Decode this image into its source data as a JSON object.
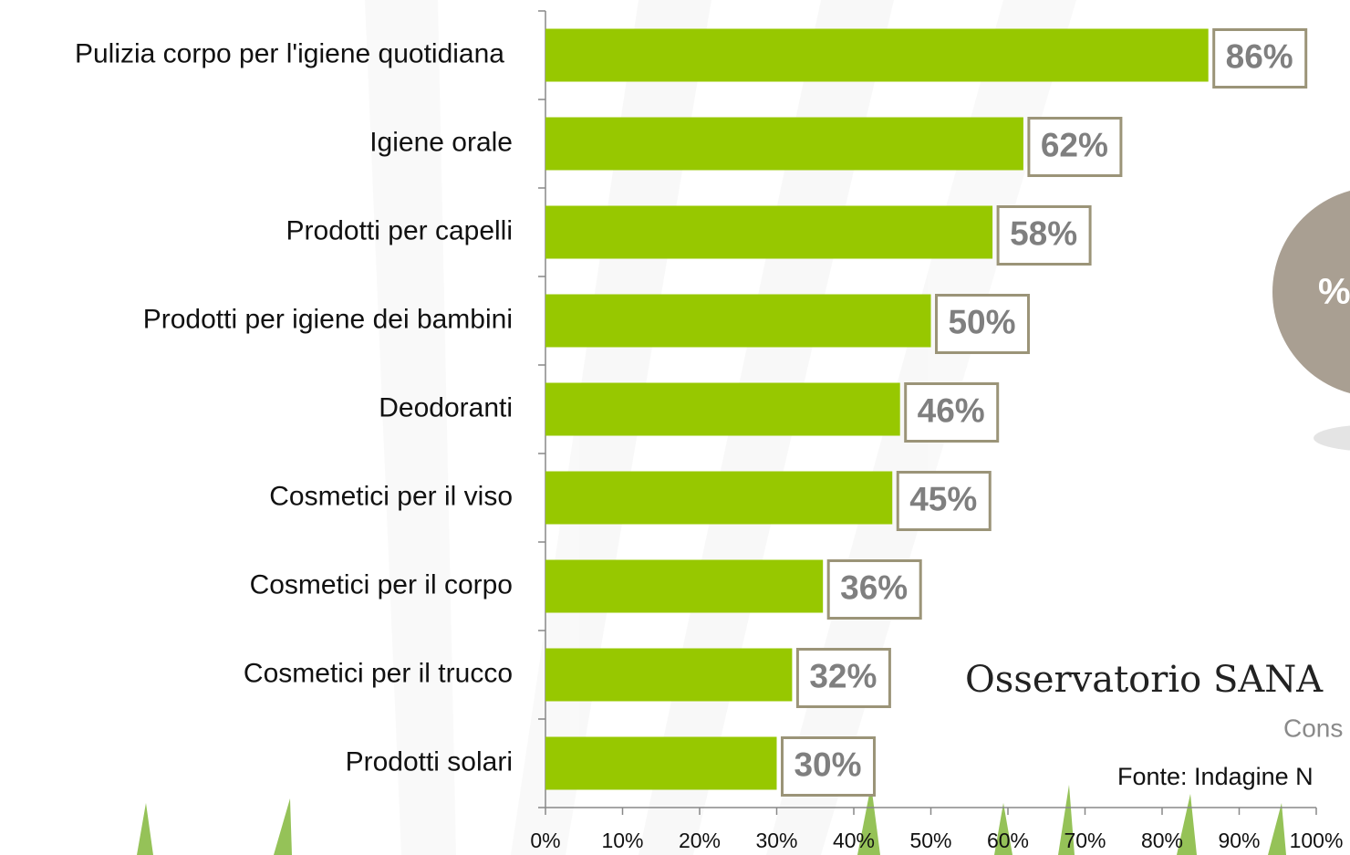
{
  "chart_data": {
    "type": "barh",
    "categories": [
      "Pulizia corpo per l'igiene quotidiana",
      "Igiene orale",
      "Prodotti per capelli",
      "Prodotti per igiene dei bambini",
      "Deodoranti",
      "Cosmetici per il viso",
      "Cosmetici per il corpo",
      "Cosmetici per il trucco",
      "Prodotti solari"
    ],
    "values": [
      86,
      62,
      58,
      50,
      46,
      45,
      36,
      32,
      30
    ],
    "value_labels": [
      "86%",
      "62%",
      "58%",
      "50%",
      "46%",
      "45%",
      "36%",
      "32%",
      "30%"
    ],
    "color": "#97c800",
    "xlim": [
      0,
      100
    ],
    "xticks": [
      {
        "value": 0,
        "label": "0%"
      },
      {
        "value": 10,
        "label": "10%"
      },
      {
        "value": 20,
        "label": "20%"
      },
      {
        "value": 30,
        "label": "30%"
      },
      {
        "value": 40,
        "label": "40%"
      },
      {
        "value": 50,
        "label": "50%"
      },
      {
        "value": 60,
        "label": "60%"
      },
      {
        "value": 70,
        "label": "70%"
      },
      {
        "value": 80,
        "label": "80%"
      },
      {
        "value": 90,
        "label": "90%"
      },
      {
        "value": 100,
        "label": "100%"
      }
    ],
    "annotations": [
      "%",
      "Osservatorio SANA",
      "Cons",
      "Fonte: Indagine N"
    ]
  }
}
